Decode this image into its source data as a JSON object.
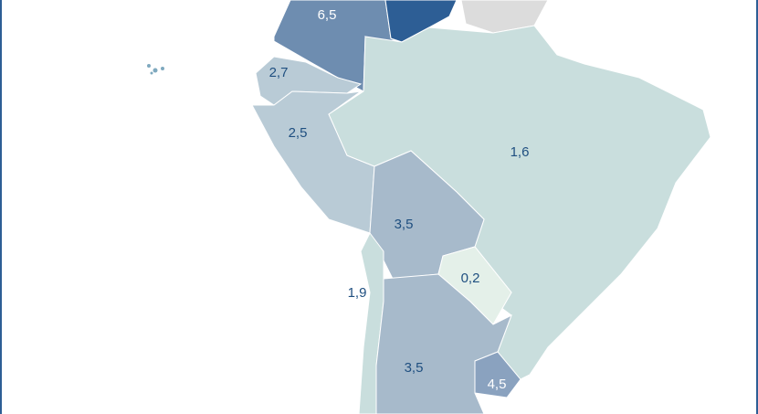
{
  "regions": [
    {
      "label": "6,5",
      "color": "#6e8db0"
    },
    {
      "label": "",
      "color": "#2d5e95"
    },
    {
      "label": "2,7",
      "color": "#b9cbd6"
    },
    {
      "label": "2,5",
      "color": "#b9cbd6"
    },
    {
      "label": "1,6",
      "color": "#c9dedd"
    },
    {
      "label": "3,5",
      "color": "#a7bacb"
    },
    {
      "label": "0,2",
      "color": "#e4f0e9"
    },
    {
      "label": "1,9",
      "color": "#c9dedd"
    },
    {
      "label": "3,5",
      "color": "#a7bacb"
    },
    {
      "label": "4,5",
      "color": "#8aa2bf"
    },
    {
      "label": "",
      "color": "#dcdcdc"
    }
  ]
}
